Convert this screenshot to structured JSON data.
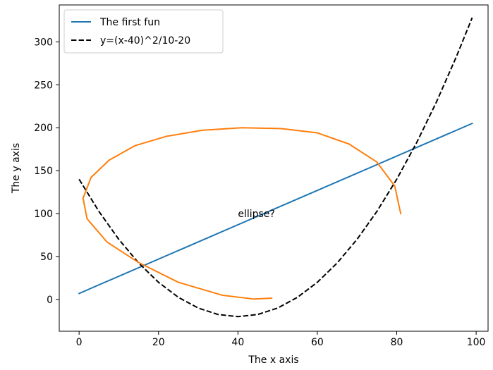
{
  "chart_data": {
    "type": "line",
    "title": "",
    "xlabel": "The x axis",
    "ylabel": "The y axis",
    "xlim": [
      -5,
      103
    ],
    "ylim": [
      -37,
      343
    ],
    "xticks": [
      0,
      20,
      40,
      60,
      80,
      100
    ],
    "yticks": [
      0,
      50,
      100,
      150,
      200,
      250,
      300
    ],
    "grid": false,
    "legend_position": "top-left",
    "series": [
      {
        "name": "The first fun",
        "color": "#1f77b4",
        "style": "solid",
        "x": [
          0,
          99
        ],
        "y": [
          7,
          205
        ]
      },
      {
        "name": "y=(x-40)^2/10-20",
        "color": "#000000",
        "style": "dashed",
        "x": [
          0,
          5,
          10,
          15,
          20,
          25,
          30,
          35,
          40,
          45,
          50,
          55,
          60,
          65,
          70,
          75,
          80,
          85,
          90,
          95,
          99
        ],
        "y": [
          140,
          102.5,
          70,
          42.5,
          20,
          2.5,
          -10,
          -17.5,
          -20,
          -17.5,
          -10,
          2.5,
          20,
          42.5,
          70,
          102.5,
          140,
          182.5,
          230,
          282.5,
          328.1
        ]
      },
      {
        "name": "",
        "color": "#ff7f0e",
        "style": "solid",
        "x": [
          81,
          79.5,
          75,
          68,
          60,
          51,
          41,
          31,
          22,
          14,
          7.5,
          3,
          1,
          2,
          7,
          15,
          25,
          36,
          44,
          48.5
        ],
        "y": [
          100,
          132,
          160,
          181,
          194,
          199,
          200,
          197,
          190,
          179,
          162,
          142,
          118,
          94,
          67,
          43,
          20,
          5,
          0.5,
          1.5
        ]
      }
    ],
    "annotations": [
      {
        "text": "ellipse?",
        "x": 40,
        "y": 100
      }
    ]
  }
}
